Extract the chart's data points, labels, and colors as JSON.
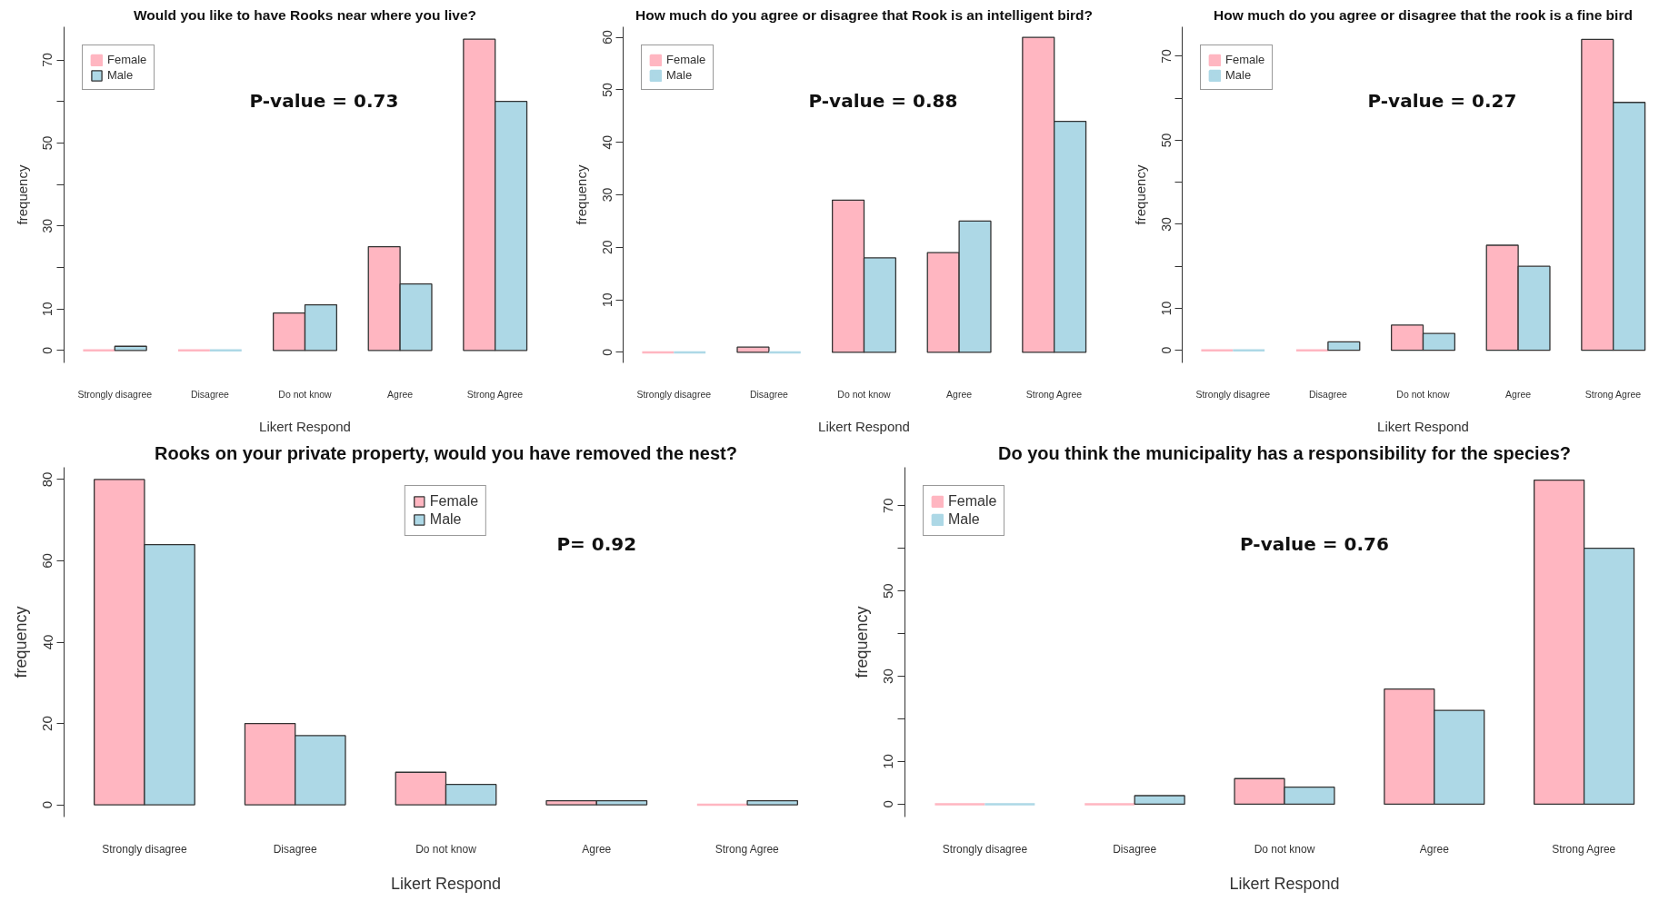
{
  "chart_data": [
    {
      "type": "bar",
      "title": "Would you like to have Rooks near where you live?",
      "xlabel": "Likert Respond",
      "ylabel": "frequency",
      "categories": [
        "Strongly disagree",
        "Disagree",
        "Do not know",
        "Agree",
        "Strong Agree"
      ],
      "series": [
        {
          "name": "Female",
          "color": "#ffb6c1",
          "values": [
            0,
            0,
            9,
            25,
            75
          ]
        },
        {
          "name": "Male",
          "color": "#add8e6",
          "values": [
            1,
            0,
            11,
            16,
            60
          ]
        }
      ],
      "ylim": [
        -3,
        78
      ],
      "yticks": [
        0,
        10,
        {
          "value": 20,
          "label": null
        },
        30,
        {
          "value": 40,
          "label": null
        },
        50,
        {
          "value": 60,
          "label": null
        },
        70
      ],
      "legend": "top left",
      "annotations": [
        "P-value = 0.73"
      ]
    },
    {
      "type": "bar",
      "title": "How much do you agree or disagree that Rook is an intelligent bird?",
      "xlabel": "Likert Respond",
      "ylabel": "frequency",
      "categories": [
        "Strongly disagree",
        "Disagree",
        "Do not know",
        "Agree",
        "Strong Agree"
      ],
      "series": [
        {
          "name": "Female",
          "color": "#ffb6c1",
          "values": [
            0,
            1,
            29,
            19,
            60
          ]
        },
        {
          "name": "Male",
          "color": "#add8e6",
          "values": [
            0,
            0,
            18,
            25,
            44
          ]
        }
      ],
      "ylim": [
        -2,
        62
      ],
      "yticks": [
        0,
        10,
        20,
        30,
        40,
        50,
        60
      ],
      "legend": "top left",
      "annotations": [
        "P-value = 0.88"
      ]
    },
    {
      "type": "bar",
      "title": "How much do you agree or disagree that the rook is a fine bird",
      "xlabel": "Likert Respond",
      "ylabel": "frequency",
      "categories": [
        "Strongly disagree",
        "Disagree",
        "Do not know",
        "Agree",
        "Strong Agree"
      ],
      "series": [
        {
          "name": "Female",
          "color": "#ffb6c1",
          "values": [
            0,
            0,
            6,
            25,
            74
          ]
        },
        {
          "name": "Male",
          "color": "#add8e6",
          "values": [
            0,
            2,
            4,
            20,
            59
          ]
        }
      ],
      "ylim": [
        -3,
        77
      ],
      "yticks": [
        0,
        10,
        {
          "value": 20,
          "label": null
        },
        30,
        {
          "value": 40,
          "label": null
        },
        50,
        {
          "value": 60,
          "label": null
        },
        70
      ],
      "legend": "top left",
      "annotations": [
        "P-value = 0.27"
      ]
    },
    {
      "type": "bar",
      "title": "Rooks on your private property, would you have removed the nest?",
      "xlabel": "Likert Respond",
      "ylabel": "frequency",
      "categories": [
        "Strongly disagree",
        "Disagree",
        "Do not know",
        "Agree",
        "Strong Agree"
      ],
      "series": [
        {
          "name": "Female",
          "color": "#ffb6c1",
          "values": [
            80,
            20,
            8,
            1,
            0
          ]
        },
        {
          "name": "Male",
          "color": "#add8e6",
          "values": [
            64,
            17,
            5,
            1,
            1
          ]
        }
      ],
      "ylim": [
        -3,
        83
      ],
      "yticks": [
        0,
        20,
        40,
        60,
        80
      ],
      "legend": "top",
      "annotations": [
        "P= 0.92"
      ]
    },
    {
      "type": "bar",
      "title": "Do you think the municipality has a responsibility for the species?",
      "xlabel": "Likert Respond",
      "ylabel": "frequency",
      "categories": [
        "Strongly disagree",
        "Disagree",
        "Do not know",
        "Agree",
        "Strong Agree"
      ],
      "series": [
        {
          "name": "Female",
          "color": "#ffb6c1",
          "values": [
            0,
            0,
            6,
            27,
            76
          ]
        },
        {
          "name": "Male",
          "color": "#add8e6",
          "values": [
            0,
            2,
            4,
            22,
            60
          ]
        }
      ],
      "ylim": [
        -3,
        79
      ],
      "yticks": [
        0,
        10,
        {
          "value": 20,
          "label": null
        },
        30,
        {
          "value": 40,
          "label": null
        },
        50,
        {
          "value": 60,
          "label": null
        },
        70
      ],
      "legend": "top left",
      "annotations": [
        "P-value = 0.76"
      ]
    }
  ]
}
